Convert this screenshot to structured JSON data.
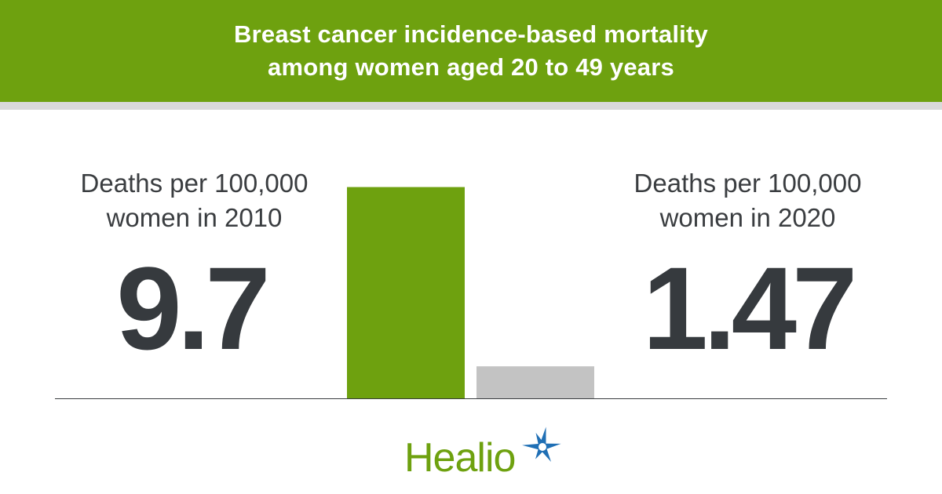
{
  "header": {
    "title_line1": "Breast cancer incidence-based mortality",
    "title_line2": "among women aged 20 to 49 years"
  },
  "stats": {
    "left": {
      "label_line1": "Deaths per 100,000",
      "label_line2": "women in 2010",
      "value": "9.7"
    },
    "right": {
      "label_line1": "Deaths per 100,000",
      "label_line2": "women in 2020",
      "value": "1.47"
    }
  },
  "chart_data": {
    "type": "bar",
    "categories": [
      "2010",
      "2020"
    ],
    "values": [
      9.7,
      1.47
    ],
    "ylim": [
      0,
      10.8
    ],
    "colors": [
      "#6ea10f",
      "#c3c3c3"
    ],
    "grid": false
  },
  "brand": {
    "name": "Healio",
    "color": "#6ea10f",
    "star_color": "#1f6fb5",
    "icon": "star-burst-icon"
  }
}
